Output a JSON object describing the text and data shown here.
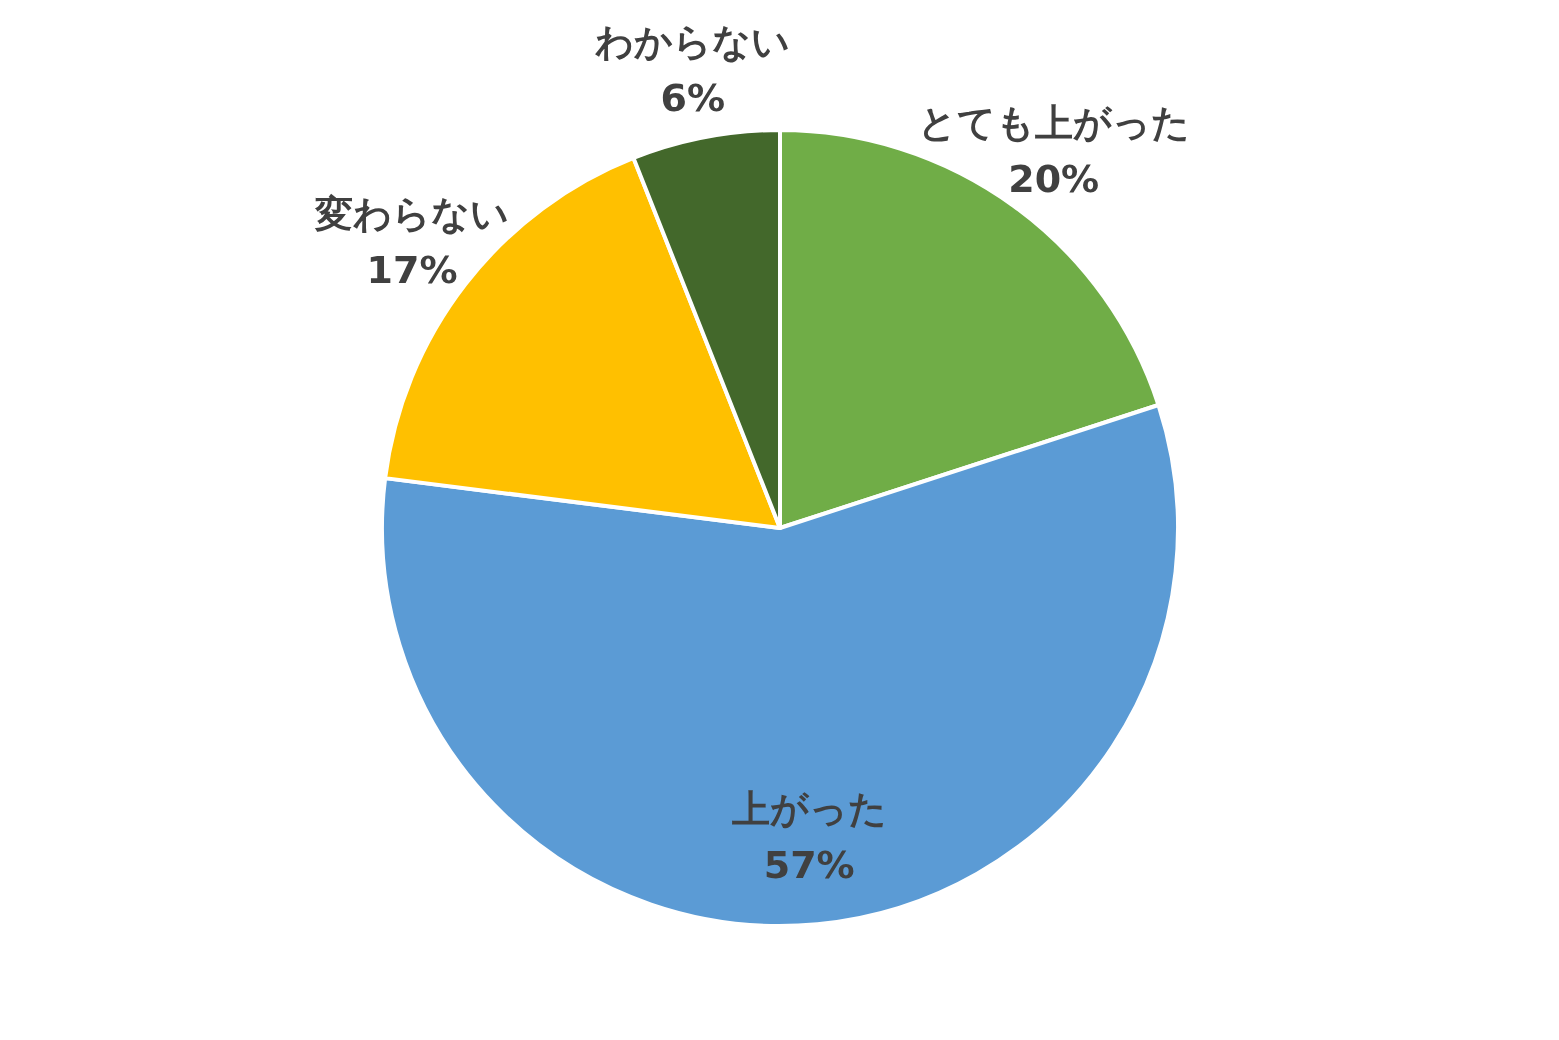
{
  "chart_data": {
    "type": "pie",
    "categories": [
      "とても上がった",
      "上がった",
      "変わらない",
      "わからない"
    ],
    "values": [
      20,
      57,
      17,
      6
    ],
    "value_labels": [
      "20%",
      "57%",
      "17%",
      "6%"
    ],
    "colors": [
      "#70ad47",
      "#5b9bd5",
      "#ffc000",
      "#43682b"
    ]
  }
}
